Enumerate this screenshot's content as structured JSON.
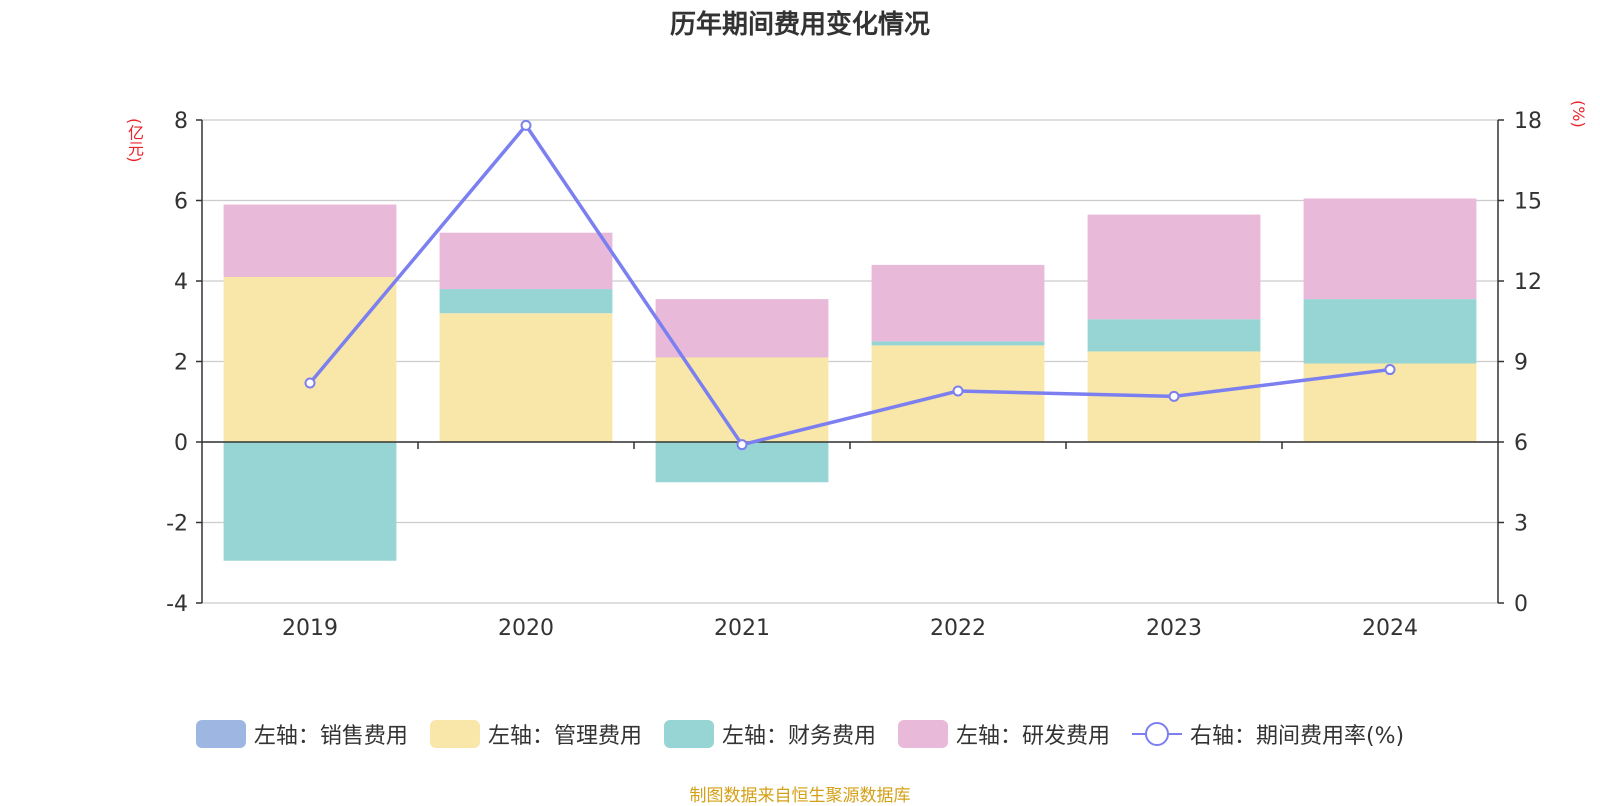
{
  "chart_data": {
    "type": "bar",
    "title": "历年期间费用变化情况",
    "categories": [
      "2019",
      "2020",
      "2021",
      "2022",
      "2023",
      "2024"
    ],
    "series": [
      {
        "name": "左轴：销售费用",
        "axis": "left",
        "type": "bar",
        "color": "#9db6e2",
        "values": [
          0,
          0,
          0,
          0,
          0,
          0
        ]
      },
      {
        "name": "左轴：管理费用",
        "axis": "left",
        "type": "bar",
        "color": "#f8e7a8",
        "values": [
          4.1,
          3.2,
          2.1,
          2.4,
          2.25,
          1.95
        ]
      },
      {
        "name": "左轴：财务费用",
        "axis": "left",
        "type": "bar",
        "color": "#97d4d4",
        "values": [
          -2.95,
          0.6,
          -1.0,
          0.1,
          0.8,
          1.6
        ]
      },
      {
        "name": "左轴：研发费用",
        "axis": "left",
        "type": "bar",
        "color": "#e8b9d9",
        "values": [
          1.8,
          1.4,
          1.45,
          1.9,
          2.6,
          2.5
        ]
      },
      {
        "name": "右轴：期间费用率(%)",
        "axis": "right",
        "type": "line",
        "color": "#7b7ff0",
        "values": [
          8.2,
          17.8,
          5.9,
          7.9,
          7.7,
          8.7
        ]
      }
    ],
    "y_left": {
      "label": "(亿元)",
      "lim": [
        -4,
        8
      ],
      "ticks": [
        "-4",
        "-2",
        "0",
        "2",
        "4",
        "6",
        "8"
      ]
    },
    "y_right": {
      "label": "(%)",
      "lim": [
        0,
        18
      ],
      "ticks": [
        "0",
        "3",
        "6",
        "9",
        "12",
        "15",
        "18"
      ]
    },
    "grid": true,
    "legend_position": "bottom-center"
  },
  "legend": [
    {
      "label": "左轴：销售费用",
      "color": "#9db6e2"
    },
    {
      "label": "左轴：管理费用",
      "color": "#f8e7a8"
    },
    {
      "label": "左轴：财务费用",
      "color": "#97d4d4"
    },
    {
      "label": "左轴：研发费用",
      "color": "#e8b9d9"
    }
  ],
  "legend_line_label": "右轴：期间费用率(%)",
  "source": "制图数据来自恒生聚源数据库"
}
